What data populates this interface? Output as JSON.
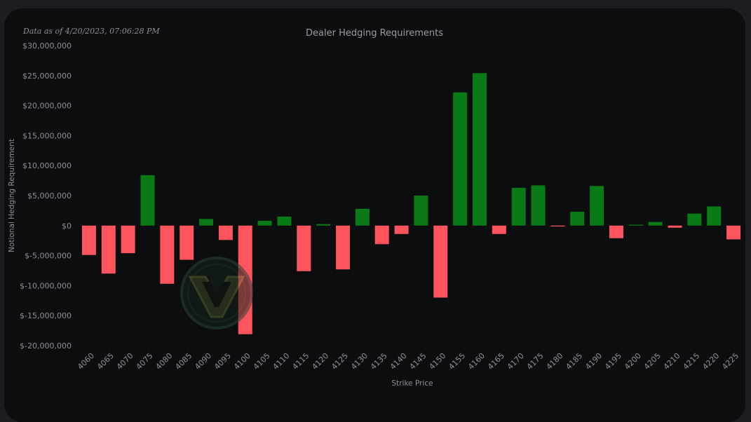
{
  "header": {
    "timestamp": "Data as of 4/20/2023, 07:06:28 PM"
  },
  "colors": {
    "positive": "#0a7a16",
    "negative": "#fd545e",
    "text": "#8e9096",
    "background": "#0c0d0f",
    "page_background": "#1b1d23"
  },
  "watermark": {
    "icon": "v-logo-icon"
  },
  "chart_data": {
    "type": "bar",
    "title": "Dealer Hedging Requirements",
    "xlabel": "Strike Price",
    "ylabel": "Notional Hedging Requirement",
    "ylim": [
      -20000000,
      30000000
    ],
    "y_ticks": [
      30000000,
      25000000,
      20000000,
      15000000,
      10000000,
      5000000,
      0,
      -5000000,
      -10000000,
      -15000000,
      -20000000
    ],
    "y_tick_labels": [
      "$30,000,000",
      "$25,000,000",
      "$20,000,000",
      "$15,000,000",
      "$10,000,000",
      "$5,000,000",
      "$0",
      "$-5,000,000",
      "$-10,000,000",
      "$-15,000,000",
      "$-20,000,000"
    ],
    "categories": [
      "4060",
      "4065",
      "4070",
      "4075",
      "4080",
      "4085",
      "4090",
      "4095",
      "4100",
      "4105",
      "4110",
      "4115",
      "4120",
      "4125",
      "4130",
      "4135",
      "4140",
      "4145",
      "4150",
      "4155",
      "4160",
      "4165",
      "4170",
      "4175",
      "4180",
      "4185",
      "4190",
      "4195",
      "4200",
      "4205",
      "4210",
      "4215",
      "4220",
      "4225"
    ],
    "values": [
      -4900000,
      -8000000,
      -4600000,
      8400000,
      -9700000,
      -5700000,
      1100000,
      -2400000,
      -18100000,
      800000,
      1500000,
      -7600000,
      250000,
      -7300000,
      2800000,
      -3100000,
      -1400000,
      5000000,
      -12000000,
      22200000,
      25400000,
      -1400000,
      6300000,
      6700000,
      -150000,
      2300000,
      6600000,
      -2100000,
      150000,
      600000,
      -350000,
      2000000,
      3200000,
      -2300000
    ],
    "grid": false,
    "legend": "none"
  }
}
